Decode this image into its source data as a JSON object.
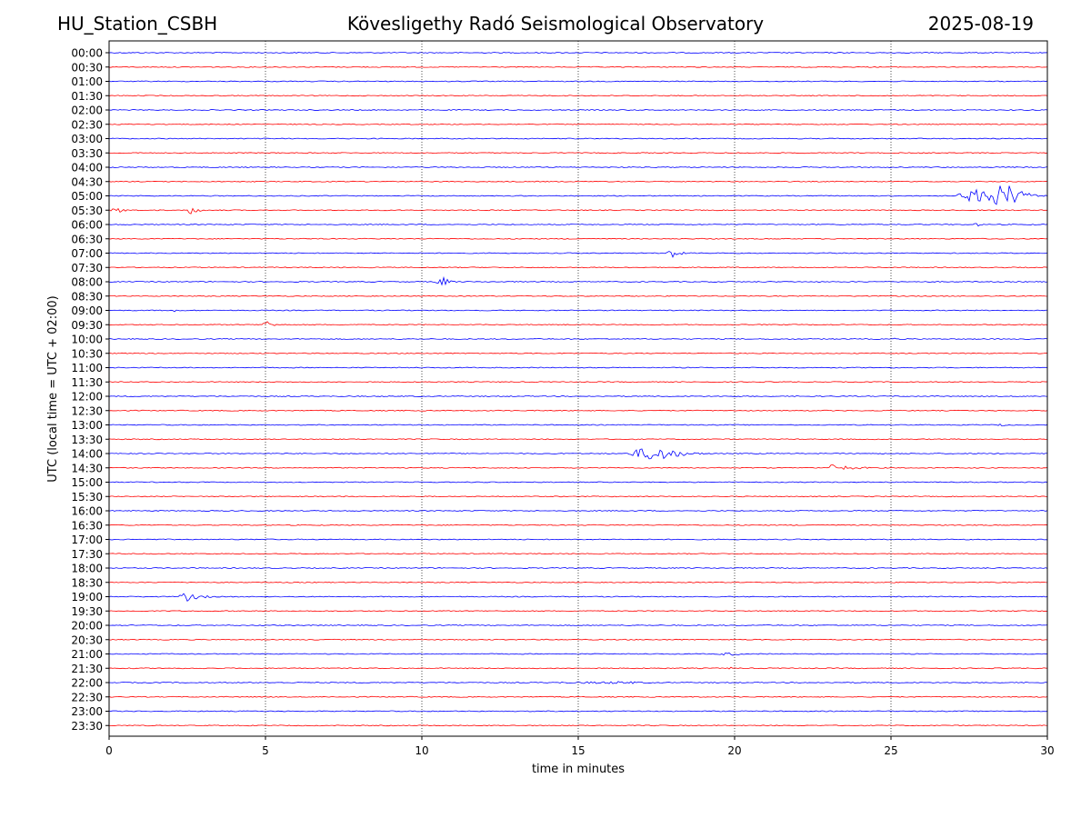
{
  "header": {
    "station": "HU_Station_CSBH",
    "observatory": "Kövesligethy Radó Seismological Observatory",
    "date": "2025-08-19"
  },
  "chart_data": {
    "type": "line",
    "title": "Kövesligethy Radó Seismological Observatory",
    "xlabel": "time in minutes",
    "ylabel": "UTC (local time = UTC + 02:00)",
    "xlim": [
      0,
      30
    ],
    "xticks": [
      0,
      5,
      10,
      15,
      20,
      25,
      30
    ],
    "grid_x": true,
    "colors": {
      "even_hour": "#0000ff",
      "half_hour": "#ff0000"
    },
    "rows": [
      "00:00",
      "00:30",
      "01:00",
      "01:30",
      "02:00",
      "02:30",
      "03:00",
      "03:30",
      "04:00",
      "04:30",
      "05:00",
      "05:30",
      "06:00",
      "06:30",
      "07:00",
      "07:30",
      "08:00",
      "08:30",
      "09:00",
      "09:30",
      "10:00",
      "10:30",
      "11:00",
      "11:30",
      "12:00",
      "12:30",
      "13:00",
      "13:30",
      "14:00",
      "14:30",
      "15:00",
      "15:30",
      "16:00",
      "16:30",
      "17:00",
      "17:30",
      "18:00",
      "18:30",
      "19:00",
      "19:30",
      "20:00",
      "20:30",
      "21:00",
      "21:30",
      "22:00",
      "22:30",
      "23:00",
      "23:30"
    ],
    "events": [
      {
        "row": "05:00",
        "start": 27.1,
        "peak": 28.8,
        "end": 30.0,
        "amp": 13
      },
      {
        "row": "05:30",
        "start": 0.0,
        "peak": 0.3,
        "end": 1.3,
        "amp": 3
      },
      {
        "row": "05:30",
        "start": 2.5,
        "peak": 2.65,
        "end": 3.2,
        "amp": 6
      },
      {
        "row": "06:00",
        "start": 27.6,
        "peak": 27.8,
        "end": 28.1,
        "amp": 2
      },
      {
        "row": "07:00",
        "start": 17.8,
        "peak": 18.0,
        "end": 18.6,
        "amp": 7
      },
      {
        "row": "08:00",
        "start": 10.4,
        "peak": 10.7,
        "end": 11.3,
        "amp": 5
      },
      {
        "row": "09:00",
        "start": 2.0,
        "peak": 2.1,
        "end": 2.5,
        "amp": 2
      },
      {
        "row": "09:30",
        "start": 4.9,
        "peak": 4.95,
        "end": 5.6,
        "amp": 7
      },
      {
        "row": "10:00",
        "start": 25.0,
        "peak": 25.2,
        "end": 25.5,
        "amp": 2
      },
      {
        "row": "13:00",
        "start": 28.4,
        "peak": 28.6,
        "end": 28.9,
        "amp": 2
      },
      {
        "row": "14:00",
        "start": 16.6,
        "peak": 17.5,
        "end": 19.5,
        "amp": 9
      },
      {
        "row": "14:30",
        "start": 23.0,
        "peak": 23.1,
        "end": 25.3,
        "amp": 4
      },
      {
        "row": "19:00",
        "start": 2.2,
        "peak": 2.5,
        "end": 3.8,
        "amp": 5
      },
      {
        "row": "21:00",
        "start": 19.3,
        "peak": 20.0,
        "end": 20.6,
        "amp": 2
      },
      {
        "row": "21:30",
        "start": 19.8,
        "peak": 19.9,
        "end": 20.1,
        "amp": 2
      },
      {
        "row": "22:00",
        "start": 13.3,
        "peak": 16.5,
        "end": 19.8,
        "amp": 1.5
      }
    ]
  }
}
